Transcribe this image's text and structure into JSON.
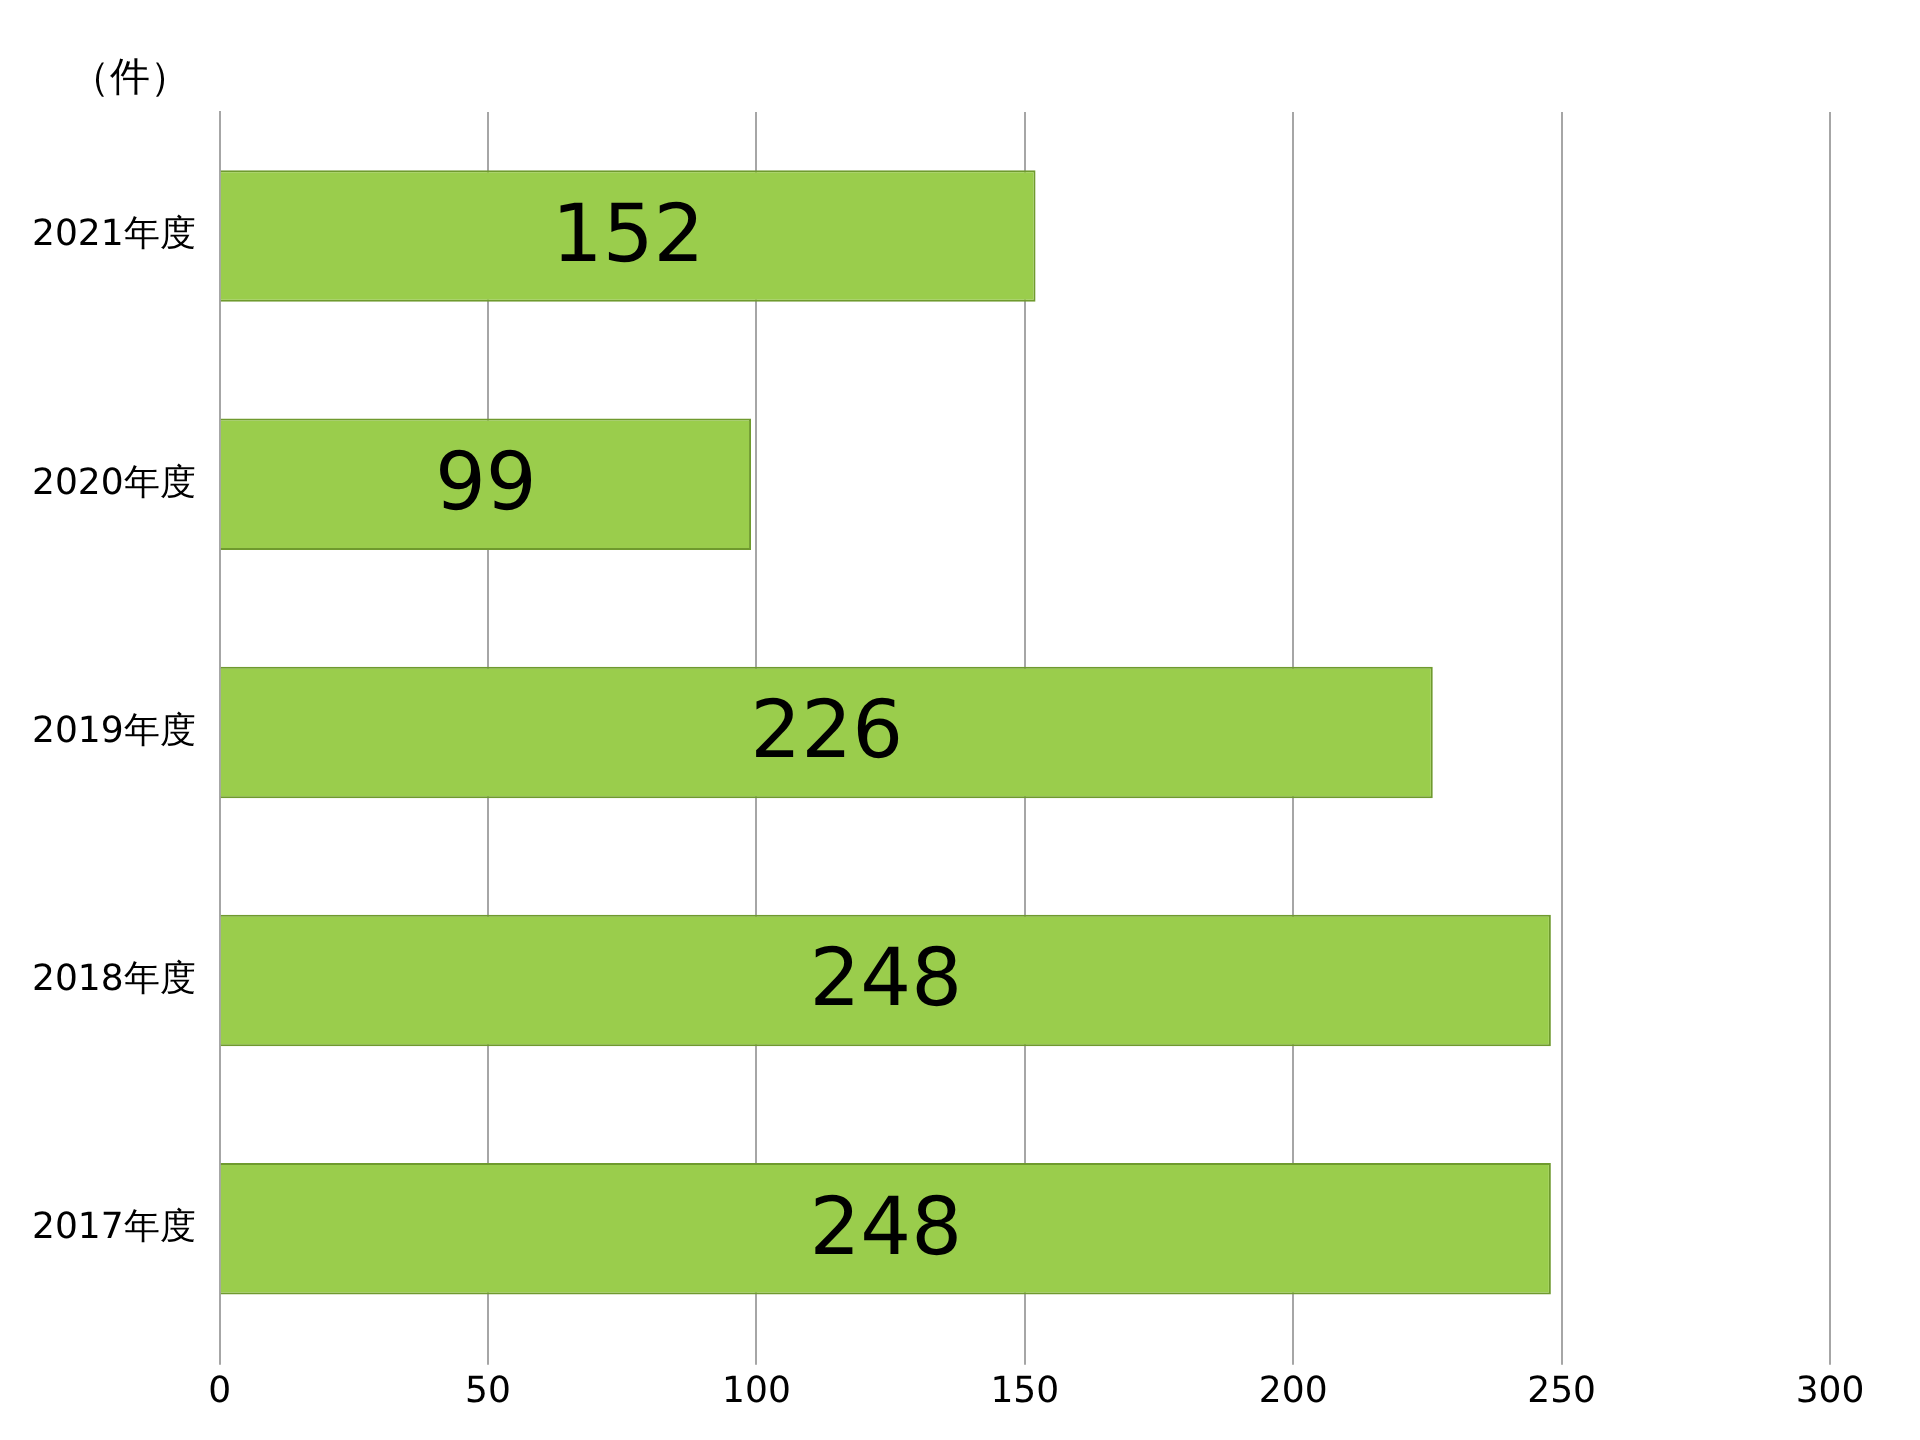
{
  "chart_data": {
    "type": "bar",
    "orientation": "horizontal",
    "ylabel": "（件）",
    "categories": [
      "2021年度",
      "2020年度",
      "2019年度",
      "2018年度",
      "2017年度"
    ],
    "values": [
      152,
      99,
      226,
      248,
      248
    ],
    "color": "#9acd4c",
    "xlim": [
      0,
      300
    ],
    "xticks": [
      0,
      50,
      100,
      150,
      200,
      250,
      300
    ],
    "grid": "x",
    "data_labels": true
  }
}
